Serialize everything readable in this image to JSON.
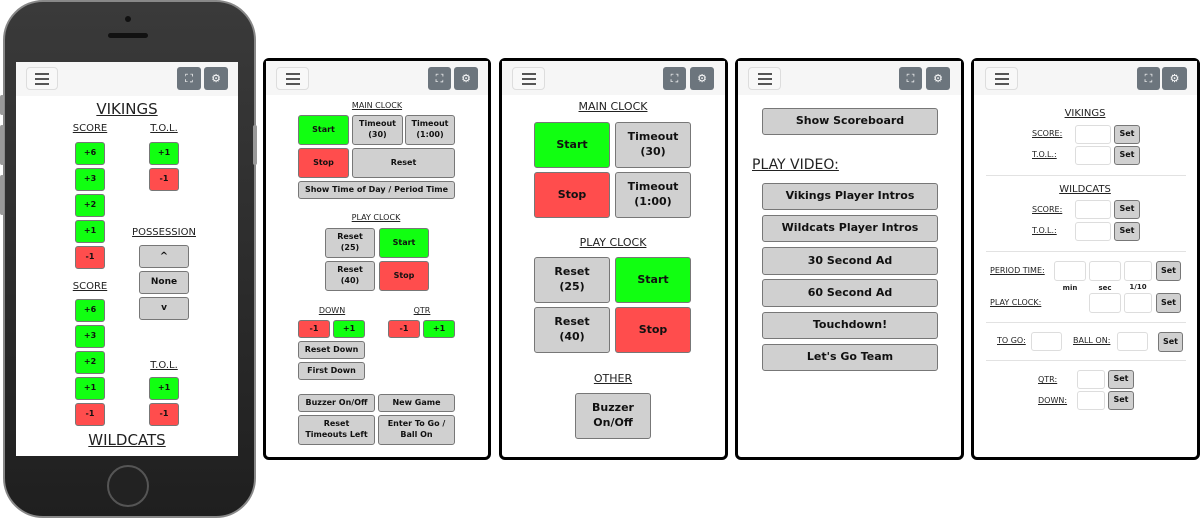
{
  "header": {
    "menu_icon": "hamburger-icon",
    "fullscreen_icon": "fullscreen-icon",
    "settings_icon": "gear-icon"
  },
  "colors": {
    "green": "#11ff11",
    "red": "#ff4d4d",
    "gray": "#d0d0d0",
    "icon_button": "#6c757d"
  },
  "scoring": {
    "home_team": "VIKINGS",
    "away_team": "WILDCATS",
    "score_label": "SCORE",
    "tol_label": "T.O.L.",
    "possession_label": "POSSESSION",
    "score_buttons": [
      "+6",
      "+3",
      "+2",
      "+1",
      "-1"
    ],
    "tol_buttons": [
      "+1",
      "-1"
    ],
    "possession_up": "^",
    "possession_none": "None",
    "possession_down": "v"
  },
  "clock_compact": {
    "main_clock": "MAIN CLOCK",
    "start": "Start",
    "timeout30": "Timeout (30)",
    "timeout100": "Timeout (1:00)",
    "stop": "Stop",
    "reset": "Reset",
    "show_time": "Show Time of Day / Period Time",
    "play_clock": "PLAY CLOCK",
    "reset25": "Reset (25)",
    "reset40": "Reset (40)",
    "pc_start": "Start",
    "pc_stop": "Stop",
    "down": "DOWN",
    "qtr": "QTR",
    "minus": "-1",
    "plus": "+1",
    "reset_down": "Reset Down",
    "first_down": "First Down",
    "buzzer": "Buzzer On/Off",
    "new_game": "New Game",
    "reset_timeouts": "Reset Timeouts Left",
    "enter_togo": "Enter To Go / Ball On"
  },
  "clock_large": {
    "main_clock": "MAIN CLOCK",
    "start": "Start",
    "timeout30": "Timeout (30)",
    "stop": "Stop",
    "timeout100": "Timeout (1:00)",
    "play_clock": "PLAY CLOCK",
    "reset25": "Reset (25)",
    "pc_start": "Start",
    "reset40": "Reset (40)",
    "pc_stop": "Stop",
    "other": "OTHER",
    "buzzer": "Buzzer On/Off"
  },
  "video": {
    "show_scoreboard": "Show Scoreboard",
    "play_video": "PLAY VIDEO:",
    "items": [
      "Vikings Player Intros",
      "Wildcats Player Intros",
      "30 Second Ad",
      "60 Second Ad",
      "Touchdown!",
      "Let's Go Team"
    ]
  },
  "settings": {
    "home_team": "VIKINGS",
    "away_team": "WILDCATS",
    "score": "SCORE:",
    "tol": "T.O.L.:",
    "set": "Set",
    "period_time": "PERIOD TIME:",
    "min": "min",
    "sec": "sec",
    "tenth": "1/10",
    "play_clock": "PLAY CLOCK:",
    "to_go": "TO GO:",
    "ball_on": "BALL ON:",
    "qtr": "QTR:",
    "down": "DOWN:"
  }
}
